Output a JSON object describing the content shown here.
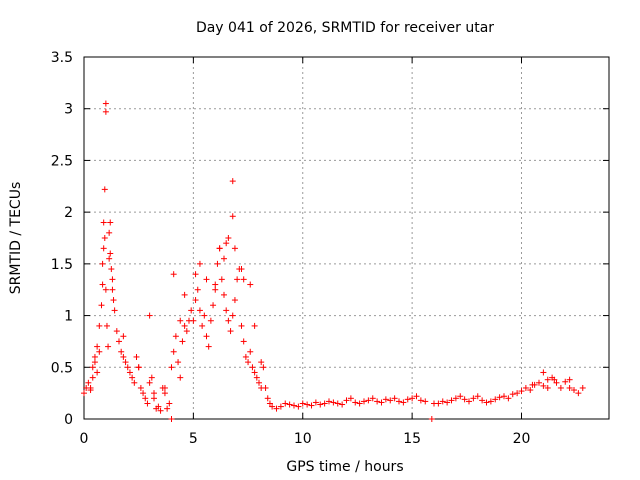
{
  "chart_data": {
    "type": "scatter",
    "title": "Day 041 of 2026, SRMTID for receiver utar",
    "xlabel": "GPS time / hours",
    "ylabel": "SRMTID / TECUs",
    "xlim": [
      0,
      24
    ],
    "ylim": [
      0,
      3.5
    ],
    "xticks": [
      0,
      5,
      10,
      15,
      20
    ],
    "xtick_labels": [
      "0",
      "5",
      "10",
      "15",
      "20"
    ],
    "yticks": [
      0,
      0.5,
      1,
      1.5,
      2,
      2.5,
      3,
      3.5
    ],
    "ytick_labels": [
      "0",
      "0.5",
      "1",
      "1.5",
      "2",
      "2.5",
      "3",
      "3.5"
    ],
    "grid": true,
    "marker": "+",
    "color": "#ff0000",
    "series": [
      {
        "name": "SRMTID",
        "x": [
          0.0,
          0.1,
          0.2,
          0.3,
          0.4,
          0.5,
          0.6,
          0.7,
          0.8,
          0.85,
          0.9,
          0.95,
          1.0,
          1.05,
          1.1,
          1.15,
          1.2,
          1.25,
          1.3,
          1.35,
          1.4,
          1.5,
          1.6,
          1.7,
          1.8,
          1.9,
          2.0,
          2.1,
          2.2,
          2.3,
          2.4,
          2.5,
          2.6,
          2.7,
          2.8,
          2.9,
          3.0,
          3.1,
          3.2,
          3.3,
          3.4,
          3.5,
          3.6,
          3.7,
          3.8,
          3.9,
          4.0,
          4.1,
          4.2,
          4.3,
          4.4,
          4.5,
          4.6,
          4.7,
          4.8,
          4.9,
          5.0,
          5.1,
          5.2,
          5.3,
          5.4,
          5.5,
          5.6,
          5.7,
          5.8,
          5.9,
          6.0,
          6.1,
          6.2,
          6.3,
          6.4,
          6.5,
          6.6,
          6.7,
          6.8,
          6.9,
          7.0,
          7.1,
          7.2,
          7.3,
          7.4,
          7.5,
          7.6,
          7.7,
          7.8,
          7.9,
          8.0,
          8.1,
          8.2,
          8.3,
          8.4,
          8.5,
          8.6,
          8.8,
          9.0,
          9.2,
          9.4,
          9.6,
          9.8,
          10.0,
          10.2,
          10.4,
          10.6,
          10.8,
          11.0,
          11.2,
          11.4,
          11.6,
          11.8,
          12.0,
          12.2,
          12.4,
          12.6,
          12.8,
          13.0,
          13.2,
          13.4,
          13.6,
          13.8,
          14.0,
          14.2,
          14.4,
          14.6,
          14.8,
          15.0,
          15.2,
          15.4,
          15.6,
          15.9,
          16.2,
          16.4,
          16.6,
          16.8,
          17.0,
          17.2,
          17.4,
          17.6,
          17.8,
          18.0,
          18.2,
          18.4,
          18.6,
          18.8,
          19.0,
          19.2,
          19.4,
          19.6,
          19.8,
          20.0,
          20.2,
          20.4,
          20.6,
          20.8,
          21.0,
          21.2,
          21.4,
          21.6,
          21.8,
          22.0,
          22.2,
          22.4,
          22.6,
          22.8,
          1.0,
          1.0,
          0.95,
          0.9,
          1.15,
          1.2,
          0.85,
          1.3,
          0.6,
          6.8,
          6.8,
          6.6,
          6.5,
          6.2,
          6.4,
          7.2,
          7.6,
          5.1,
          5.3,
          4.1,
          0.4,
          0.5,
          3.0,
          2.5,
          0.3,
          0.7,
          1.8,
          5.6,
          6.0,
          6.9,
          7.3,
          4.6,
          4.4,
          7.8,
          8.1,
          3.2,
          3.7,
          4.0,
          16.0,
          21.0,
          21.5,
          22.2,
          21.2,
          20.5
        ],
        "y": [
          0.25,
          0.3,
          0.35,
          0.28,
          0.4,
          0.55,
          0.7,
          0.9,
          1.1,
          1.3,
          1.65,
          1.75,
          1.25,
          0.9,
          0.7,
          1.55,
          1.9,
          1.45,
          1.25,
          1.15,
          1.05,
          0.85,
          0.75,
          0.65,
          0.6,
          0.55,
          0.5,
          0.45,
          0.4,
          0.35,
          0.6,
          0.5,
          0.3,
          0.25,
          0.2,
          0.15,
          0.35,
          0.4,
          0.2,
          0.1,
          0.12,
          0.08,
          0.3,
          0.25,
          0.1,
          0.15,
          0.5,
          0.65,
          0.8,
          0.55,
          0.4,
          0.75,
          0.9,
          0.85,
          0.95,
          1.05,
          0.95,
          1.15,
          1.25,
          1.05,
          0.9,
          1.0,
          0.8,
          0.7,
          0.95,
          1.1,
          1.25,
          1.5,
          1.65,
          1.35,
          1.2,
          1.05,
          0.95,
          0.85,
          1.0,
          1.15,
          1.35,
          1.45,
          0.9,
          0.75,
          0.6,
          0.55,
          0.65,
          0.5,
          0.45,
          0.4,
          0.35,
          0.55,
          0.5,
          0.3,
          0.2,
          0.15,
          0.12,
          0.1,
          0.12,
          0.15,
          0.14,
          0.13,
          0.12,
          0.15,
          0.14,
          0.13,
          0.16,
          0.14,
          0.15,
          0.17,
          0.16,
          0.15,
          0.14,
          0.18,
          0.2,
          0.16,
          0.15,
          0.17,
          0.18,
          0.2,
          0.17,
          0.16,
          0.19,
          0.18,
          0.2,
          0.17,
          0.16,
          0.19,
          0.2,
          0.22,
          0.18,
          0.17,
          0.0,
          0.15,
          0.17,
          0.16,
          0.18,
          0.2,
          0.22,
          0.19,
          0.17,
          0.2,
          0.22,
          0.18,
          0.16,
          0.17,
          0.19,
          0.21,
          0.22,
          0.2,
          0.24,
          0.25,
          0.27,
          0.3,
          0.28,
          0.33,
          0.35,
          0.32,
          0.38,
          0.4,
          0.35,
          0.3,
          0.36,
          0.3,
          0.28,
          0.25,
          0.3,
          3.05,
          2.97,
          2.22,
          1.9,
          1.8,
          1.6,
          1.5,
          1.35,
          0.45,
          2.3,
          1.96,
          1.75,
          1.7,
          1.65,
          1.55,
          1.45,
          1.3,
          1.4,
          1.5,
          1.4,
          0.5,
          0.6,
          1.0,
          0.5,
          0.3,
          0.65,
          0.8,
          1.35,
          1.3,
          1.65,
          1.35,
          1.2,
          0.95,
          0.9,
          0.3,
          0.25,
          0.3,
          0.0,
          0.15,
          0.45,
          0.38,
          0.38,
          0.3,
          0.33
        ]
      }
    ]
  }
}
